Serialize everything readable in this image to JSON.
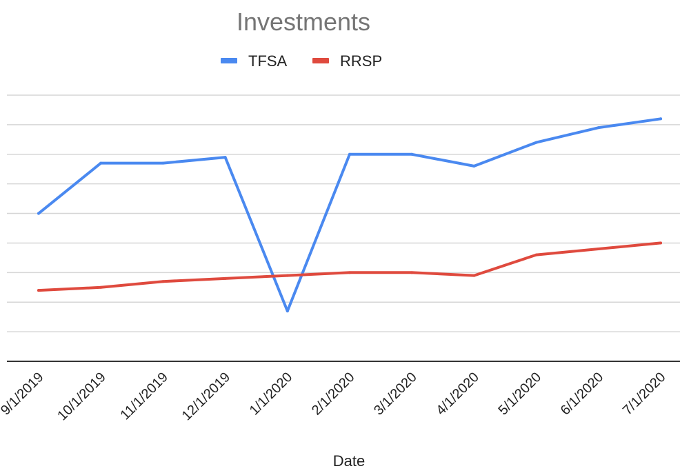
{
  "chart_data": {
    "type": "line",
    "title": "Investments",
    "xlabel": "Date",
    "ylabel": "",
    "categories": [
      "9/1/2019",
      "10/1/2019",
      "11/1/2019",
      "12/1/2019",
      "1/1/2020",
      "2/1/2020",
      "3/1/2020",
      "4/1/2020",
      "5/1/2020",
      "6/1/2020",
      "7/1/2020"
    ],
    "series": [
      {
        "name": "TFSA",
        "color": "#4a89f0",
        "values": [
          5.0,
          6.7,
          6.7,
          6.9,
          1.7,
          7.0,
          7.0,
          6.6,
          7.4,
          7.9,
          8.2
        ]
      },
      {
        "name": "RRSP",
        "color": "#df4a3e",
        "values": [
          2.4,
          2.5,
          2.7,
          2.8,
          2.9,
          3.0,
          3.0,
          2.9,
          3.6,
          3.8,
          4.0
        ]
      }
    ],
    "ylim": [
      0,
      9
    ],
    "grid": true,
    "legend": "top"
  }
}
